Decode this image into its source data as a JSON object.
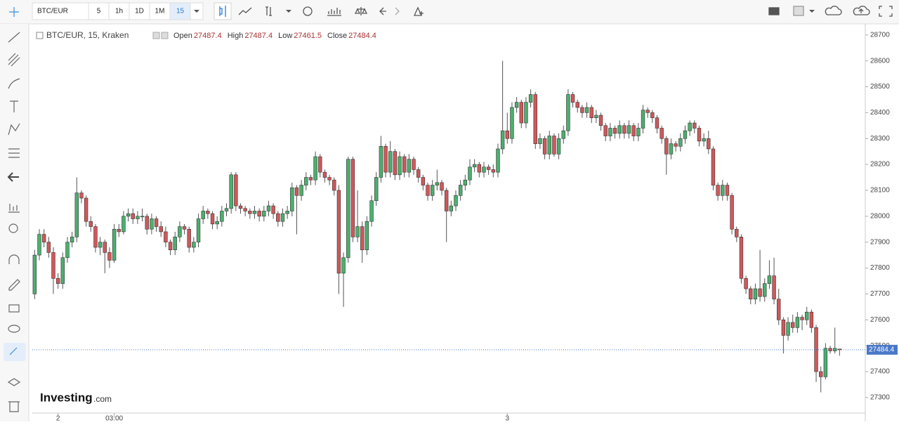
{
  "toolbar": {
    "symbol": "BTC/EUR",
    "intervals": [
      "5",
      "1h",
      "1D",
      "1M",
      "15"
    ]
  },
  "logo": {
    "name": "Investing",
    "suffix": ".com"
  },
  "chart_data": {
    "type": "candlestick",
    "title": "BTC/EUR, 15, Kraken",
    "legend_labels": [
      "Open",
      "High",
      "Low",
      "Close"
    ],
    "up_color": "#4caf6e",
    "down_color": "#d0585a",
    "wick_color": "#555555",
    "price_line_color": "#4a78c8",
    "ylim": [
      27240,
      28740
    ],
    "yticks": [
      27300,
      27400,
      27500,
      27600,
      27700,
      27800,
      27900,
      28000,
      28100,
      28200,
      28300,
      28400,
      28500,
      28600,
      28700
    ],
    "xlim": [
      -0.5,
      177.5
    ],
    "xticks": [
      {
        "value": 5,
        "label": "2"
      },
      {
        "value": 17,
        "label": "03:00"
      },
      {
        "value": 101,
        "label": "3"
      }
    ],
    "ohlc": [
      [
        27700,
        27870,
        27680,
        27850
      ],
      [
        27850,
        27950,
        27830,
        27930
      ],
      [
        27930,
        27950,
        27880,
        27900
      ],
      [
        27900,
        27920,
        27840,
        27860
      ],
      [
        27860,
        27880,
        27700,
        27760
      ],
      [
        27760,
        27780,
        27720,
        27740
      ],
      [
        27740,
        27860,
        27720,
        27840
      ],
      [
        27840,
        27920,
        27820,
        27900
      ],
      [
        27900,
        27940,
        27880,
        27920
      ],
      [
        27920,
        28150,
        27900,
        28090
      ],
      [
        28090,
        28100,
        28050,
        28070
      ],
      [
        28070,
        28080,
        27960,
        27980
      ],
      [
        27980,
        28000,
        27940,
        27960
      ],
      [
        27960,
        27970,
        27860,
        27880
      ],
      [
        27880,
        27920,
        27850,
        27900
      ],
      [
        27900,
        27910,
        27780,
        27860
      ],
      [
        27860,
        27880,
        27800,
        27830
      ],
      [
        27830,
        27970,
        27820,
        27950
      ],
      [
        27950,
        27970,
        27920,
        27940
      ],
      [
        27940,
        28020,
        27930,
        28000
      ],
      [
        28000,
        28030,
        27980,
        28010
      ],
      [
        28010,
        28030,
        27970,
        27990
      ],
      [
        27990,
        28020,
        27970,
        28000
      ],
      [
        28000,
        28030,
        27980,
        28000
      ],
      [
        28000,
        28010,
        27930,
        27950
      ],
      [
        27950,
        28010,
        27930,
        27990
      ],
      [
        27990,
        28000,
        27940,
        27960
      ],
      [
        27960,
        27980,
        27920,
        27940
      ],
      [
        27940,
        27960,
        27880,
        27900
      ],
      [
        27900,
        27910,
        27850,
        27870
      ],
      [
        27870,
        27940,
        27850,
        27920
      ],
      [
        27920,
        27980,
        27900,
        27960
      ],
      [
        27960,
        27970,
        27930,
        27950
      ],
      [
        27950,
        27960,
        27860,
        27880
      ],
      [
        27880,
        27920,
        27860,
        27900
      ],
      [
        27900,
        28010,
        27880,
        27990
      ],
      [
        27990,
        28040,
        27970,
        28020
      ],
      [
        28020,
        28030,
        27990,
        28010
      ],
      [
        28010,
        28020,
        27950,
        27970
      ],
      [
        27970,
        28000,
        27950,
        27980
      ],
      [
        27980,
        28040,
        27960,
        28020
      ],
      [
        28020,
        28050,
        28000,
        28030
      ],
      [
        28030,
        28170,
        28010,
        28160
      ],
      [
        28160,
        28170,
        28020,
        28040
      ],
      [
        28040,
        28050,
        28010,
        28030
      ],
      [
        28030,
        28040,
        28000,
        28020
      ],
      [
        28020,
        28030,
        27990,
        28010
      ],
      [
        28010,
        28040,
        27990,
        28020
      ],
      [
        28020,
        28030,
        27980,
        28000
      ],
      [
        28000,
        28040,
        27980,
        28020
      ],
      [
        28020,
        28060,
        28000,
        28040
      ],
      [
        28040,
        28050,
        27990,
        28010
      ],
      [
        28010,
        28020,
        27960,
        27980
      ],
      [
        27980,
        28030,
        27960,
        28010
      ],
      [
        28010,
        28040,
        27990,
        28020
      ],
      [
        28020,
        28130,
        28000,
        28110
      ],
      [
        28110,
        28120,
        27930,
        28080
      ],
      [
        28080,
        28140,
        28060,
        28120
      ],
      [
        28120,
        28170,
        28100,
        28150
      ],
      [
        28150,
        28160,
        28120,
        28140
      ],
      [
        28140,
        28250,
        28120,
        28230
      ],
      [
        28230,
        28240,
        28150,
        28170
      ],
      [
        28170,
        28180,
        28130,
        28150
      ],
      [
        28150,
        28160,
        28120,
        28140
      ],
      [
        28140,
        28150,
        28080,
        28100
      ],
      [
        28100,
        28120,
        27700,
        27780
      ],
      [
        27780,
        27860,
        27650,
        27840
      ],
      [
        27840,
        28230,
        27820,
        28220
      ],
      [
        28220,
        28230,
        27900,
        27920
      ],
      [
        27920,
        28100,
        27900,
        27960
      ],
      [
        27960,
        27980,
        27820,
        27870
      ],
      [
        27870,
        28000,
        27850,
        27980
      ],
      [
        27980,
        28080,
        27960,
        28060
      ],
      [
        28060,
        28170,
        28040,
        28150
      ],
      [
        28150,
        28310,
        28130,
        28270
      ],
      [
        28270,
        28280,
        28150,
        28170
      ],
      [
        28170,
        28290,
        28150,
        28250
      ],
      [
        28250,
        28260,
        28140,
        28160
      ],
      [
        28160,
        28250,
        28140,
        28230
      ],
      [
        28230,
        28240,
        28150,
        28170
      ],
      [
        28170,
        28240,
        28150,
        28220
      ],
      [
        28220,
        28230,
        28160,
        28180
      ],
      [
        28180,
        28190,
        28130,
        28150
      ],
      [
        28150,
        28160,
        28100,
        28120
      ],
      [
        28120,
        28130,
        28060,
        28080
      ],
      [
        28080,
        28140,
        28060,
        28120
      ],
      [
        28120,
        28180,
        28100,
        28130
      ],
      [
        28130,
        28140,
        28080,
        28100
      ],
      [
        28100,
        28110,
        27900,
        28020
      ],
      [
        28020,
        28060,
        28000,
        28040
      ],
      [
        28040,
        28100,
        28020,
        28080
      ],
      [
        28080,
        28140,
        28060,
        28120
      ],
      [
        28120,
        28160,
        28100,
        28140
      ],
      [
        28140,
        28220,
        28120,
        28190
      ],
      [
        28190,
        28220,
        28170,
        28200
      ],
      [
        28200,
        28210,
        28150,
        28170
      ],
      [
        28170,
        28210,
        28150,
        28190
      ],
      [
        28190,
        28200,
        28160,
        28180
      ],
      [
        28180,
        28200,
        28150,
        28170
      ],
      [
        28170,
        28280,
        28150,
        28260
      ],
      [
        28260,
        28600,
        28240,
        28330
      ],
      [
        28330,
        28400,
        28280,
        28300
      ],
      [
        28300,
        28440,
        28280,
        28420
      ],
      [
        28420,
        28460,
        28400,
        28440
      ],
      [
        28440,
        28450,
        28340,
        28360
      ],
      [
        28360,
        28460,
        28340,
        28440
      ],
      [
        28440,
        28490,
        28420,
        28470
      ],
      [
        28470,
        28480,
        28260,
        28280
      ],
      [
        28280,
        28320,
        28260,
        28300
      ],
      [
        28300,
        28310,
        28220,
        28240
      ],
      [
        28240,
        28330,
        28220,
        28310
      ],
      [
        28310,
        28320,
        28230,
        28240
      ],
      [
        28240,
        28320,
        28220,
        28300
      ],
      [
        28300,
        28350,
        28280,
        28330
      ],
      [
        28330,
        28490,
        28310,
        28470
      ],
      [
        28470,
        28480,
        28420,
        28440
      ],
      [
        28440,
        28450,
        28400,
        28420
      ],
      [
        28420,
        28430,
        28380,
        28400
      ],
      [
        28400,
        28440,
        28380,
        28420
      ],
      [
        28420,
        28430,
        28360,
        28380
      ],
      [
        28380,
        28410,
        28360,
        28390
      ],
      [
        28390,
        28400,
        28330,
        28350
      ],
      [
        28350,
        28360,
        28290,
        28310
      ],
      [
        28310,
        28360,
        28290,
        28340
      ],
      [
        28340,
        28350,
        28300,
        28320
      ],
      [
        28320,
        28370,
        28300,
        28350
      ],
      [
        28350,
        28360,
        28300,
        28320
      ],
      [
        28320,
        28370,
        28300,
        28350
      ],
      [
        28350,
        28360,
        28290,
        28310
      ],
      [
        28310,
        28360,
        28290,
        28340
      ],
      [
        28340,
        28430,
        28320,
        28410
      ],
      [
        28410,
        28420,
        28380,
        28400
      ],
      [
        28400,
        28410,
        28360,
        28380
      ],
      [
        28380,
        28390,
        28320,
        28340
      ],
      [
        28340,
        28350,
        28280,
        28300
      ],
      [
        28300,
        28310,
        28160,
        28240
      ],
      [
        28240,
        28300,
        28220,
        28280
      ],
      [
        28280,
        28290,
        28250,
        28270
      ],
      [
        28270,
        28320,
        28250,
        28300
      ],
      [
        28300,
        28350,
        28280,
        28330
      ],
      [
        28330,
        28370,
        28310,
        28360
      ],
      [
        28360,
        28370,
        28320,
        28340
      ],
      [
        28340,
        28350,
        28270,
        28290
      ],
      [
        28290,
        28320,
        28270,
        28300
      ],
      [
        28300,
        28330,
        28240,
        28260
      ],
      [
        28260,
        28270,
        28100,
        28120
      ],
      [
        28120,
        28130,
        28060,
        28080
      ],
      [
        28080,
        28140,
        28060,
        28120
      ],
      [
        28120,
        28130,
        28060,
        28080
      ],
      [
        28080,
        28090,
        27930,
        27950
      ],
      [
        27950,
        27960,
        27900,
        27920
      ],
      [
        27920,
        27930,
        27740,
        27760
      ],
      [
        27760,
        27770,
        27700,
        27720
      ],
      [
        27720,
        27730,
        27660,
        27680
      ],
      [
        27680,
        27740,
        27660,
        27720
      ],
      [
        27720,
        27870,
        27670,
        27690
      ],
      [
        27690,
        27760,
        27670,
        27740
      ],
      [
        27740,
        27830,
        27720,
        27770
      ],
      [
        27770,
        27840,
        27660,
        27680
      ],
      [
        27680,
        27720,
        27580,
        27600
      ],
      [
        27600,
        27610,
        27470,
        27540
      ],
      [
        27540,
        27610,
        27520,
        27590
      ],
      [
        27590,
        27620,
        27550,
        27570
      ],
      [
        27570,
        27630,
        27550,
        27610
      ],
      [
        27610,
        27620,
        27560,
        27600
      ],
      [
        27600,
        27650,
        27580,
        27630
      ],
      [
        27630,
        27640,
        27550,
        27570
      ],
      [
        27570,
        27580,
        27360,
        27400
      ],
      [
        27400,
        27420,
        27320,
        27380
      ],
      [
        27380,
        27510,
        27370,
        27490
      ],
      [
        27490,
        27500,
        27470,
        27480
      ],
      [
        27480,
        27570,
        27470,
        27490
      ],
      [
        27487.4,
        27487.4,
        27461.5,
        27484.4
      ]
    ]
  }
}
